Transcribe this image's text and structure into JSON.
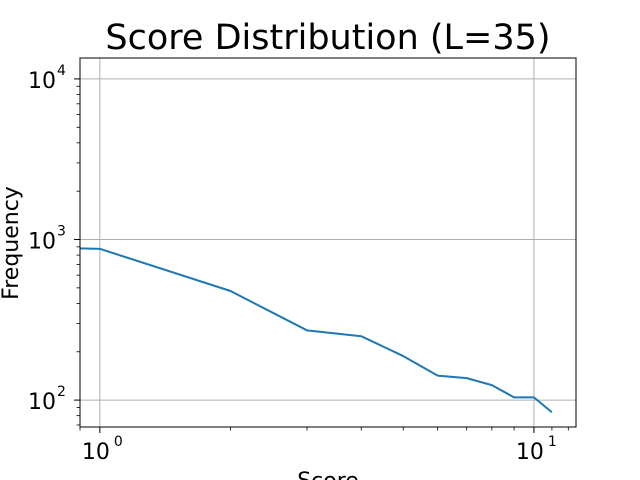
{
  "chart_data": {
    "type": "line",
    "title": "Score Distribution (L=35)",
    "xlabel": "Score",
    "ylabel": "Frequency",
    "xscale": "log",
    "yscale": "log",
    "xlim": [
      0.9,
      12.5
    ],
    "ylim": [
      68,
      13500
    ],
    "grid": true,
    "x_ticks": [
      {
        "base": "10",
        "exp": "0",
        "value": 1
      },
      {
        "base": "10",
        "exp": "1",
        "value": 10
      }
    ],
    "y_ticks": [
      {
        "base": "10",
        "exp": "2",
        "value": 100
      },
      {
        "base": "10",
        "exp": "3",
        "value": 1000
      },
      {
        "base": "10",
        "exp": "4",
        "value": 10000
      }
    ],
    "series": [
      {
        "color": "#1f77b4",
        "x": [
          0.9,
          1,
          2,
          3,
          4,
          5,
          6,
          7,
          8,
          9,
          10,
          11
        ],
        "y": [
          880,
          875,
          478,
          272,
          250,
          188,
          142,
          137,
          124,
          104,
          104,
          84
        ]
      }
    ]
  }
}
